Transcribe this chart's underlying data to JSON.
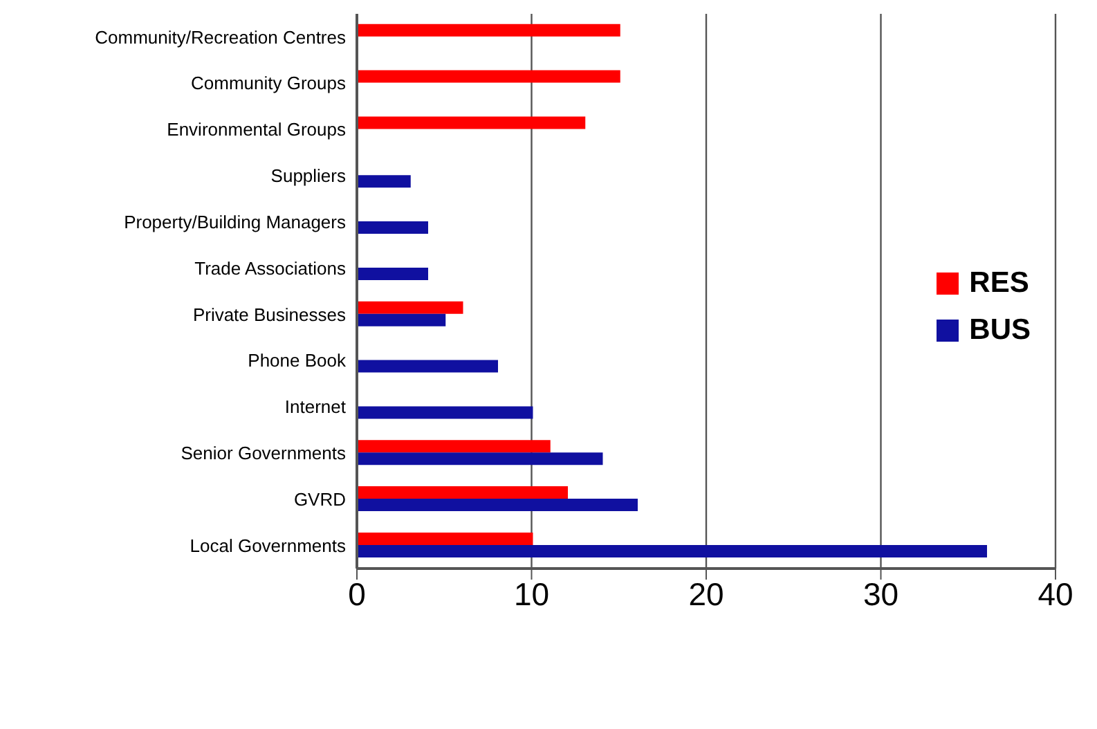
{
  "chart_data": {
    "type": "bar",
    "orientation": "horizontal",
    "categories": [
      "Community/Recreation Centres",
      "Community Groups",
      "Environmental Groups",
      "Suppliers",
      "Property/Building Managers",
      "Trade Associations",
      "Private Businesses",
      "Phone Book",
      "Internet",
      "Senior Governments",
      "GVRD",
      "Local Governments"
    ],
    "series": [
      {
        "name": "RES",
        "color": "#ff0000",
        "values": [
          15,
          15,
          13,
          null,
          null,
          null,
          6,
          null,
          null,
          11,
          12,
          10
        ]
      },
      {
        "name": "BUS",
        "color": "#1010a0",
        "values": [
          null,
          null,
          null,
          3,
          4,
          4,
          5,
          8,
          10,
          14,
          16,
          36
        ]
      }
    ],
    "xlim": [
      0,
      40
    ],
    "xticks": [
      0,
      10,
      20,
      30,
      40
    ],
    "grid": "x",
    "legend": "right"
  }
}
